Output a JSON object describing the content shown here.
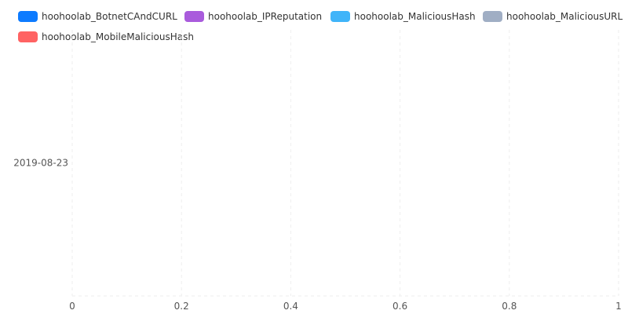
{
  "chart_data": {
    "type": "bar",
    "orientation": "horizontal",
    "stacked": true,
    "categories": [
      "2019-08-23"
    ],
    "series": [
      {
        "name": "hoohoolab_BotnetCAndCURL",
        "color": "#0d7bff",
        "values": [
          0
        ]
      },
      {
        "name": "hoohoolab_IPReputation",
        "color": "#a95bdc",
        "values": [
          0
        ]
      },
      {
        "name": "hoohoolab_MaliciousHash",
        "color": "#40b4f9",
        "values": [
          0
        ]
      },
      {
        "name": "hoohoolab_MaliciousURL",
        "color": "#a0aec4",
        "values": [
          0
        ]
      },
      {
        "name": "hoohoolab_MobileMaliciousHash",
        "color": "#ff6363",
        "values": [
          0
        ]
      }
    ],
    "xlim": [
      0,
      1
    ],
    "xticks": [
      "0",
      "0.2",
      "0.4",
      "0.6",
      "0.8",
      "1"
    ],
    "grid": true,
    "legend_position": "top"
  }
}
